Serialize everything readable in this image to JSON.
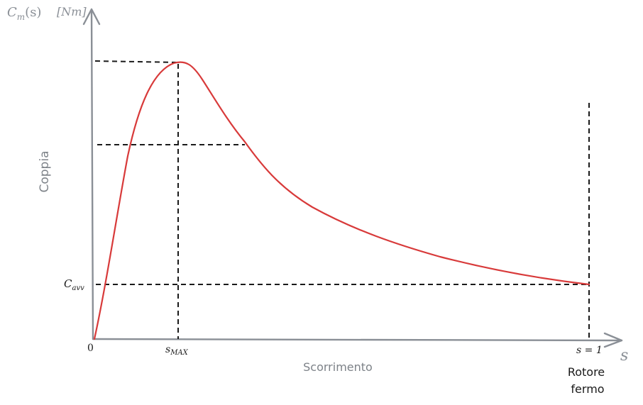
{
  "y_axis": {
    "symbol": "C",
    "symbol_sub": "m",
    "symbol_arg": "(s)",
    "unit": "[Nm]",
    "title": "Coppia"
  },
  "x_axis": {
    "symbol": "s",
    "title": "Scorrimento",
    "origin": "0"
  },
  "labels": {
    "c_avv": "C",
    "c_avv_sub": "avv",
    "s_max": "s",
    "s_max_sub": "MAX",
    "s_one": "s = 1",
    "rotor_line1": "Rotore",
    "rotor_line2": "fermo"
  },
  "colors": {
    "axis": "#8a8f96",
    "curve": "#d83a3a",
    "guides": "#1a1a1a"
  }
}
